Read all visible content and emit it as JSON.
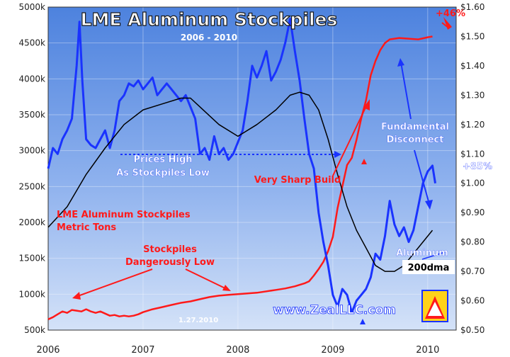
{
  "chart_data": {
    "type": "line",
    "title": "LME Aluminum Stockpiles",
    "subtitle": "2006 - 2010",
    "x_ticks": [
      "2006",
      "2007",
      "2008",
      "2009",
      "2010"
    ],
    "xlim": [
      2006.0,
      2010.3
    ],
    "y_left": {
      "ylim": [
        500000,
        5000000
      ],
      "ticks": [
        "500k",
        "1000k",
        "1500k",
        "2000k",
        "2500k",
        "3000k",
        "3500k",
        "4000k",
        "4500k",
        "5000k"
      ]
    },
    "y_right": {
      "ylim": [
        0.5,
        1.6
      ],
      "ticks": [
        "$0.50",
        "$0.60",
        "$0.70",
        "$0.80",
        "$0.90",
        "$1.00",
        "$1.10",
        "$1.20",
        "$1.30",
        "$1.40",
        "$1.50",
        "$1.60"
      ]
    },
    "series": [
      {
        "name": "LME Aluminum Stockpiles",
        "axis": "left",
        "color": "#ff1a1a",
        "x": [
          2006.0,
          2006.05,
          2006.1,
          2006.15,
          2006.2,
          2006.25,
          2006.3,
          2006.35,
          2006.4,
          2006.45,
          2006.5,
          2006.55,
          2006.6,
          2006.65,
          2006.7,
          2006.75,
          2006.8,
          2006.85,
          2006.9,
          2006.95,
          2007.0,
          2007.1,
          2007.2,
          2007.3,
          2007.4,
          2007.5,
          2007.6,
          2007.7,
          2007.8,
          2007.9,
          2008.0,
          2008.1,
          2008.2,
          2008.3,
          2008.4,
          2008.5,
          2008.6,
          2008.7,
          2008.75,
          2008.8,
          2008.85,
          2008.9,
          2008.95,
          2009.0,
          2009.05,
          2009.1,
          2009.15,
          2009.2,
          2009.25,
          2009.3,
          2009.35,
          2009.4,
          2009.45,
          2009.5,
          2009.55,
          2009.6,
          2009.7,
          2009.8,
          2009.9,
          2010.0,
          2010.05
        ],
        "values": [
          650000,
          680000,
          720000,
          760000,
          740000,
          780000,
          770000,
          760000,
          790000,
          760000,
          740000,
          760000,
          730000,
          700000,
          710000,
          690000,
          700000,
          690000,
          700000,
          720000,
          750000,
          790000,
          820000,
          850000,
          880000,
          900000,
          930000,
          960000,
          980000,
          990000,
          1000000,
          1010000,
          1020000,
          1040000,
          1060000,
          1080000,
          1110000,
          1150000,
          1180000,
          1260000,
          1350000,
          1450000,
          1600000,
          1800000,
          2200000,
          2500000,
          2800000,
          2900000,
          3150000,
          3450000,
          3700000,
          4050000,
          4250000,
          4400000,
          4500000,
          4550000,
          4570000,
          4560000,
          4550000,
          4580000,
          4590000
        ]
      },
      {
        "name": "Aluminum",
        "axis": "right",
        "color": "#1a33ff",
        "x": [
          2006.0,
          2006.05,
          2006.1,
          2006.15,
          2006.2,
          2006.25,
          2006.3,
          2006.33,
          2006.36,
          2006.4,
          2006.45,
          2006.5,
          2006.55,
          2006.6,
          2006.65,
          2006.7,
          2006.75,
          2006.8,
          2006.85,
          2006.9,
          2006.95,
          2007.0,
          2007.05,
          2007.1,
          2007.15,
          2007.2,
          2007.25,
          2007.3,
          2007.35,
          2007.4,
          2007.45,
          2007.5,
          2007.55,
          2007.6,
          2007.65,
          2007.7,
          2007.75,
          2007.8,
          2007.85,
          2007.9,
          2007.95,
          2008.0,
          2008.05,
          2008.1,
          2008.15,
          2008.2,
          2008.25,
          2008.3,
          2008.35,
          2008.4,
          2008.45,
          2008.5,
          2008.55,
          2008.6,
          2008.65,
          2008.7,
          2008.75,
          2008.8,
          2008.85,
          2008.9,
          2008.95,
          2009.0,
          2009.05,
          2009.1,
          2009.15,
          2009.2,
          2009.25,
          2009.3,
          2009.35,
          2009.4,
          2009.45,
          2009.5,
          2009.55,
          2009.6,
          2009.65,
          2009.7,
          2009.75,
          2009.8,
          2009.85,
          2009.9,
          2009.95,
          2010.0,
          2010.05,
          2010.08
        ],
        "values": [
          1.05,
          1.12,
          1.1,
          1.15,
          1.18,
          1.22,
          1.4,
          1.55,
          1.35,
          1.15,
          1.13,
          1.12,
          1.15,
          1.18,
          1.12,
          1.18,
          1.28,
          1.3,
          1.34,
          1.33,
          1.35,
          1.32,
          1.34,
          1.36,
          1.3,
          1.32,
          1.34,
          1.32,
          1.3,
          1.28,
          1.3,
          1.26,
          1.22,
          1.1,
          1.12,
          1.08,
          1.16,
          1.1,
          1.12,
          1.08,
          1.1,
          1.14,
          1.18,
          1.28,
          1.4,
          1.36,
          1.4,
          1.45,
          1.35,
          1.38,
          1.42,
          1.48,
          1.56,
          1.45,
          1.35,
          1.22,
          1.1,
          1.05,
          0.9,
          0.8,
          0.72,
          0.62,
          0.58,
          0.64,
          0.62,
          0.56,
          0.6,
          0.62,
          0.64,
          0.68,
          0.76,
          0.74,
          0.82,
          0.94,
          0.86,
          0.82,
          0.85,
          0.8,
          0.84,
          0.92,
          1.0,
          1.04,
          1.06,
          1.0
        ]
      },
      {
        "name": "200dma",
        "axis": "right",
        "color": "#000000",
        "x": [
          2006.0,
          2006.2,
          2006.4,
          2006.6,
          2006.8,
          2007.0,
          2007.2,
          2007.4,
          2007.5,
          2007.6,
          2007.8,
          2008.0,
          2008.2,
          2008.4,
          2008.55,
          2008.65,
          2008.75,
          2008.85,
          2008.95,
          2009.05,
          2009.15,
          2009.25,
          2009.35,
          2009.45,
          2009.55,
          2009.65,
          2009.75,
          2009.85,
          2009.95,
          2010.05
        ],
        "values": [
          0.85,
          0.92,
          1.03,
          1.12,
          1.2,
          1.25,
          1.27,
          1.29,
          1.29,
          1.26,
          1.2,
          1.16,
          1.2,
          1.25,
          1.3,
          1.31,
          1.3,
          1.25,
          1.15,
          1.03,
          0.92,
          0.84,
          0.78,
          0.72,
          0.7,
          0.7,
          0.72,
          0.76,
          0.8,
          0.84
        ]
      }
    ],
    "annotations": [
      {
        "text": "Prices High",
        "color": "#1a33ff"
      },
      {
        "text": "As Stockpiles Low",
        "color": "#1a33ff"
      },
      {
        "text": "Very Sharp Build",
        "color": "#ff1a1a"
      },
      {
        "text": "Fundamental",
        "color": "#1a33ff"
      },
      {
        "text": "Disconnect",
        "color": "#1a33ff"
      },
      {
        "text": "+85%",
        "color": "#1a33ff"
      },
      {
        "text": "+46%",
        "color": "#ff1a1a"
      },
      {
        "text": "LME Aluminum Stockpiles",
        "color": "#ff1a1a"
      },
      {
        "text": "Metric Tons",
        "color": "#ff1a1a"
      },
      {
        "text": "Stockpiles",
        "color": "#ff1a1a"
      },
      {
        "text": "Dangerously Low",
        "color": "#ff1a1a"
      },
      {
        "text": "Aluminum",
        "color": "#1a33ff"
      },
      {
        "text": "200dma",
        "color": "#000000"
      },
      {
        "text": "1.27.2010",
        "color": "#ffffff"
      },
      {
        "text": "www.ZealLLC.com",
        "color": "#1a33ff"
      }
    ],
    "grid": true,
    "background": "#5b8ce0"
  }
}
